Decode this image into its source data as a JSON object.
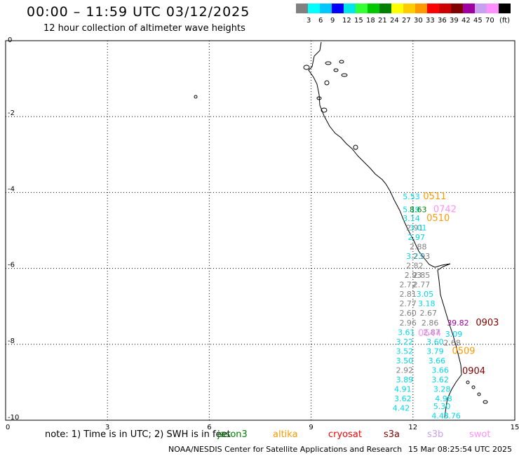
{
  "header": {
    "title": "00:00 – 11:59 UTC 03/12/2025",
    "subtitle": "12 hour collection of altimeter wave heights"
  },
  "colorbar": {
    "unit": "(ft)",
    "entries": [
      {
        "label": "",
        "color": "#808080"
      },
      {
        "label": "3",
        "color": "#00ffff"
      },
      {
        "label": "6",
        "color": "#00c8ff"
      },
      {
        "label": "9",
        "color": "#0000ff"
      },
      {
        "label": "12",
        "color": "#00e6e6"
      },
      {
        "label": "15",
        "color": "#33ff33"
      },
      {
        "label": "18",
        "color": "#00c800"
      },
      {
        "label": "21",
        "color": "#008000"
      },
      {
        "label": "24",
        "color": "#ffff00"
      },
      {
        "label": "27",
        "color": "#ffcc00"
      },
      {
        "label": "30",
        "color": "#ff9900"
      },
      {
        "label": "33",
        "color": "#ff0000"
      },
      {
        "label": "36",
        "color": "#cc0000"
      },
      {
        "label": "39",
        "color": "#800000"
      },
      {
        "label": "42",
        "color": "#a000a0"
      },
      {
        "label": "45",
        "color": "#c8a0f0"
      },
      {
        "label": "70",
        "color": "#ff90ff"
      },
      {
        "label": "",
        "color": "#000000"
      }
    ]
  },
  "axes": {
    "x_ticks": [
      "0",
      "3",
      "6",
      "9",
      "12",
      "15"
    ],
    "y_ticks": [
      "0",
      "-2",
      "-4",
      "-6",
      "-8",
      "-10"
    ]
  },
  "observations": [
    {
      "text": "5.53",
      "lon": 11.7,
      "lat": -4.18,
      "color": "#00d8e8"
    },
    {
      "text": "0511",
      "lon": 12.3,
      "lat": -4.18,
      "color": "#ff9900"
    },
    {
      "text": "5.19",
      "lon": 11.7,
      "lat": -4.52,
      "color": "#00d8e8"
    },
    {
      "text": "8.63",
      "lon": 11.9,
      "lat": -4.52,
      "color": "#008000"
    },
    {
      "text": "0742",
      "lon": 12.6,
      "lat": -4.52,
      "color": "#ff90ff"
    },
    {
      "text": "3.14",
      "lon": 11.7,
      "lat": -4.75,
      "color": "#00d8e8"
    },
    {
      "text": "0510",
      "lon": 12.4,
      "lat": -4.75,
      "color": "#ff9900"
    },
    {
      "text": "2.91",
      "lon": 11.8,
      "lat": -5.0,
      "color": "#808080"
    },
    {
      "text": "3.01",
      "lon": 11.9,
      "lat": -5.0,
      "color": "#00d8e8"
    },
    {
      "text": "2.97",
      "lon": 11.85,
      "lat": -5.25,
      "color": "#00d8e8"
    },
    {
      "text": "2.88",
      "lon": 11.9,
      "lat": -5.5,
      "color": "#808080"
    },
    {
      "text": "3.23",
      "lon": 11.8,
      "lat": -5.75,
      "color": "#00d8e8"
    },
    {
      "text": "2.93",
      "lon": 12.0,
      "lat": -5.75,
      "color": "#808080"
    },
    {
      "text": "2.82",
      "lon": 11.8,
      "lat": -6.0,
      "color": "#808080"
    },
    {
      "text": "2.93",
      "lon": 11.75,
      "lat": -6.25,
      "color": "#808080"
    },
    {
      "text": "2.85",
      "lon": 12.0,
      "lat": -6.25,
      "color": "#808080"
    },
    {
      "text": "2.72",
      "lon": 11.6,
      "lat": -6.5,
      "color": "#808080"
    },
    {
      "text": "2.77",
      "lon": 12.0,
      "lat": -6.5,
      "color": "#808080"
    },
    {
      "text": "2.81",
      "lon": 11.6,
      "lat": -6.75,
      "color": "#808080"
    },
    {
      "text": "3.05",
      "lon": 12.1,
      "lat": -6.75,
      "color": "#00d8e8"
    },
    {
      "text": "2.77",
      "lon": 11.6,
      "lat": -7.0,
      "color": "#808080"
    },
    {
      "text": "3.18",
      "lon": 12.15,
      "lat": -7.0,
      "color": "#00d8e8"
    },
    {
      "text": "2.60",
      "lon": 11.6,
      "lat": -7.25,
      "color": "#808080"
    },
    {
      "text": "2.67",
      "lon": 12.2,
      "lat": -7.25,
      "color": "#808080"
    },
    {
      "text": "2.96",
      "lon": 11.6,
      "lat": -7.5,
      "color": "#808080"
    },
    {
      "text": "2.86",
      "lon": 12.25,
      "lat": -7.5,
      "color": "#808080"
    },
    {
      "text": "39.82",
      "lon": 13.0,
      "lat": -7.5,
      "color": "#a000a0"
    },
    {
      "text": "0903",
      "lon": 13.85,
      "lat": -7.5,
      "color": "#800000"
    },
    {
      "text": "3.61",
      "lon": 11.55,
      "lat": -7.75,
      "color": "#00d8e8"
    },
    {
      "text": "2.87",
      "lon": 12.3,
      "lat": -7.75,
      "color": "#808080"
    },
    {
      "text": "0644",
      "lon": 12.15,
      "lat": -7.78,
      "color": "#ff90ff"
    },
    {
      "text": "3.09",
      "lon": 12.95,
      "lat": -7.8,
      "color": "#00d8e8"
    },
    {
      "text": "3.22",
      "lon": 11.5,
      "lat": -8.0,
      "color": "#00d8e8"
    },
    {
      "text": "3.60",
      "lon": 12.4,
      "lat": -8.0,
      "color": "#00d8e8"
    },
    {
      "text": "2.68",
      "lon": 12.9,
      "lat": -8.03,
      "color": "#808080"
    },
    {
      "text": "3.52",
      "lon": 11.5,
      "lat": -8.25,
      "color": "#00d8e8"
    },
    {
      "text": "3.79",
      "lon": 12.4,
      "lat": -8.25,
      "color": "#00d8e8"
    },
    {
      "text": "0509",
      "lon": 13.15,
      "lat": -8.25,
      "color": "#ff9900"
    },
    {
      "text": "3.50",
      "lon": 11.5,
      "lat": -8.5,
      "color": "#00d8e8"
    },
    {
      "text": "3.66",
      "lon": 12.45,
      "lat": -8.5,
      "color": "#00d8e8"
    },
    {
      "text": "2.92",
      "lon": 11.5,
      "lat": -8.75,
      "color": "#808080"
    },
    {
      "text": "3.66",
      "lon": 12.55,
      "lat": -8.75,
      "color": "#00d8e8"
    },
    {
      "text": "0904",
      "lon": 13.45,
      "lat": -8.78,
      "color": "#800000"
    },
    {
      "text": "3.89",
      "lon": 11.5,
      "lat": -9.0,
      "color": "#00d8e8"
    },
    {
      "text": "3.62",
      "lon": 12.55,
      "lat": -9.0,
      "color": "#00d8e8"
    },
    {
      "text": "4.91",
      "lon": 11.45,
      "lat": -9.25,
      "color": "#00d8e8"
    },
    {
      "text": "3.28",
      "lon": 12.6,
      "lat": -9.25,
      "color": "#00d8e8"
    },
    {
      "text": "3.62",
      "lon": 11.45,
      "lat": -9.5,
      "color": "#00d8e8"
    },
    {
      "text": "4.98",
      "lon": 12.65,
      "lat": -9.5,
      "color": "#00d8e8"
    },
    {
      "text": "4.42",
      "lon": 11.4,
      "lat": -9.75,
      "color": "#00d8e8"
    },
    {
      "text": "5.30",
      "lon": 12.6,
      "lat": -9.7,
      "color": "#00d8e8"
    },
    {
      "text": "4.43",
      "lon": 12.55,
      "lat": -9.95,
      "color": "#00d8e8"
    },
    {
      "text": "5.76",
      "lon": 12.9,
      "lat": -9.95,
      "color": "#00d8e8"
    }
  ],
  "legend": {
    "note": "note:  1) Time is in UTC;  2) SWH is in feet",
    "satellites": [
      {
        "name": "jason3",
        "color": "#008000"
      },
      {
        "name": "altika",
        "color": "#ff9900"
      },
      {
        "name": "cryosat",
        "color": "#ff0000"
      },
      {
        "name": "s3a",
        "color": "#800000"
      },
      {
        "name": "s3b",
        "color": "#c8a0f0"
      },
      {
        "name": "swot",
        "color": "#ff90ff"
      }
    ]
  },
  "footer": {
    "credit": "NOAA/NESDIS Center for Satellite Applications and Research",
    "timestamp": "15 Mar 08:25:54 UTC 2025"
  }
}
